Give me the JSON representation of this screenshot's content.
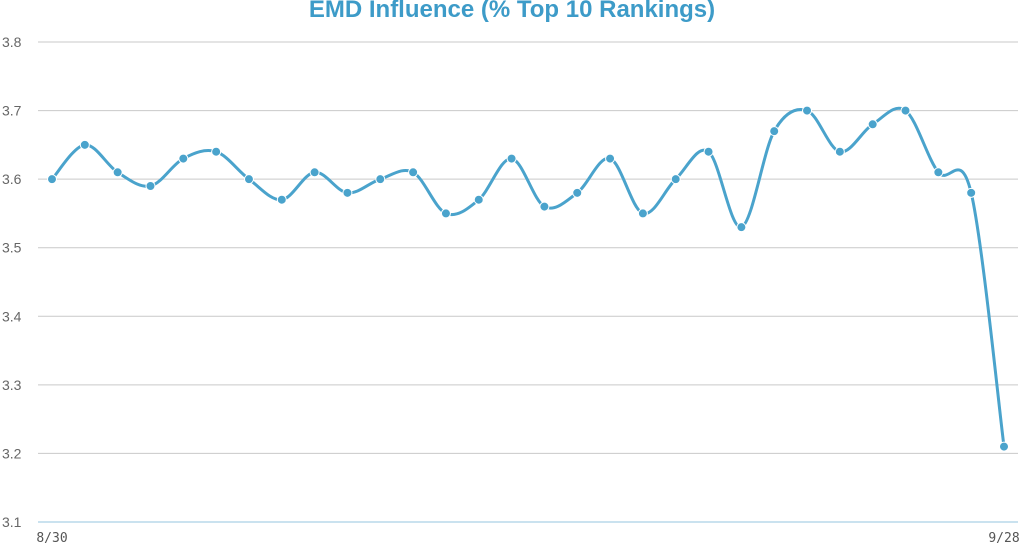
{
  "chart_data": {
    "type": "line",
    "title": "EMD Influence (% Top 10 Rankings)",
    "xlabel": "",
    "ylabel": "",
    "ylim": [
      3.1,
      3.8
    ],
    "yticks": [
      "3.1",
      "3.2",
      "3.3",
      "3.4",
      "3.5",
      "3.6",
      "3.7",
      "3.8"
    ],
    "xtick_labels": [
      "8/30",
      "9/28"
    ],
    "grid": true,
    "line_color": "#4aa3cc",
    "title_color": "#3d9bc8",
    "series": [
      {
        "values": [
          3.6,
          3.65,
          3.61,
          3.59,
          3.63,
          3.64,
          3.6,
          3.57,
          3.61,
          3.58,
          3.6,
          3.61,
          3.55,
          3.57,
          3.63,
          3.56,
          3.58,
          3.63,
          3.55,
          3.6,
          3.64,
          3.53,
          3.67,
          3.7,
          3.64,
          3.68,
          3.7,
          3.61,
          3.58,
          3.21
        ]
      }
    ]
  }
}
